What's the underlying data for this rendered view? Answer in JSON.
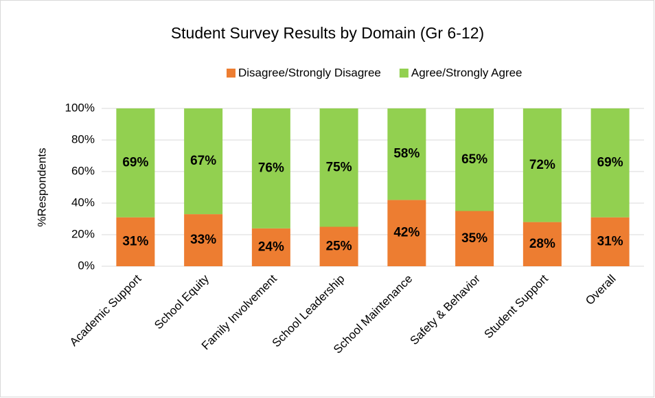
{
  "chart_data": {
    "type": "stacked_bar",
    "title": "Student Survey Results by Domain (Gr 6-12)",
    "y_axis_label": "%Respondents",
    "categories": [
      "Academic Support",
      "School Equity",
      "Family Involvement",
      "School Leadership",
      "School Maintenance",
      "Safety & Behavior",
      "Student Support",
      "Overall"
    ],
    "series": [
      {
        "name": "Disagree/Strongly Disagree",
        "color": "#ed7d31",
        "values": [
          31,
          33,
          24,
          25,
          42,
          35,
          28,
          31
        ],
        "value_labels": [
          "31%",
          "33%",
          "24%",
          "25%",
          "42%",
          "35%",
          "28%",
          "31%"
        ]
      },
      {
        "name": "Agree/Strongly Agree",
        "color": "#92d050",
        "values": [
          69,
          67,
          76,
          75,
          58,
          65,
          72,
          69
        ],
        "value_labels": [
          "69%",
          "67%",
          "76%",
          "75%",
          "58%",
          "65%",
          "72%",
          "69%"
        ]
      }
    ],
    "ylim": [
      0,
      100
    ],
    "yticks": [
      {
        "value": 0,
        "label": "0%"
      },
      {
        "value": 20,
        "label": "20%"
      },
      {
        "value": 40,
        "label": "40%"
      },
      {
        "value": 60,
        "label": "60%"
      },
      {
        "value": 80,
        "label": "80%"
      },
      {
        "value": 100,
        "label": "100%"
      }
    ],
    "grid": true,
    "legend": "top"
  }
}
